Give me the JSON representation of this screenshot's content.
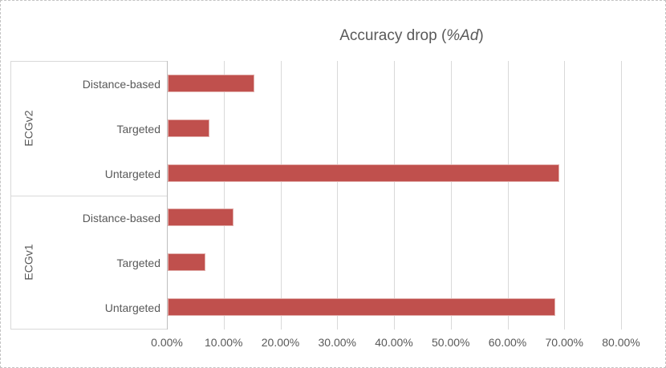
{
  "title": {
    "prefix": "Accuracy drop (",
    "italic": "%Ad",
    "suffix": ")"
  },
  "chart_data": {
    "type": "bar",
    "orientation": "horizontal",
    "title": "Accuracy drop (%Ad)",
    "groups": [
      {
        "label": "ECGv2",
        "items": [
          {
            "category": "Distance-based",
            "value": 15.3
          },
          {
            "category": "Targeted",
            "value": 7.3
          },
          {
            "category": "Untargeted",
            "value": 69.0
          }
        ]
      },
      {
        "label": "ECGv1",
        "items": [
          {
            "category": "Distance-based",
            "value": 11.6
          },
          {
            "category": "Targeted",
            "value": 6.6
          },
          {
            "category": "Untargeted",
            "value": 68.2
          }
        ]
      }
    ],
    "x_axis": {
      "min": 0,
      "max": 80,
      "tick_step": 10,
      "tick_labels": [
        "0.00%",
        "10.00%",
        "20.00%",
        "30.00%",
        "40.00%",
        "50.00%",
        "60.00%",
        "70.00%",
        "80.00%"
      ],
      "format": "percent"
    },
    "legend": "none",
    "grid": "vertical",
    "colors": {
      "bar_fill": "#c0504d",
      "bar_border": "#e2aeab",
      "gridline": "#d9d9d9",
      "axis_line": "#bfbfbf",
      "text": "#595959"
    }
  }
}
